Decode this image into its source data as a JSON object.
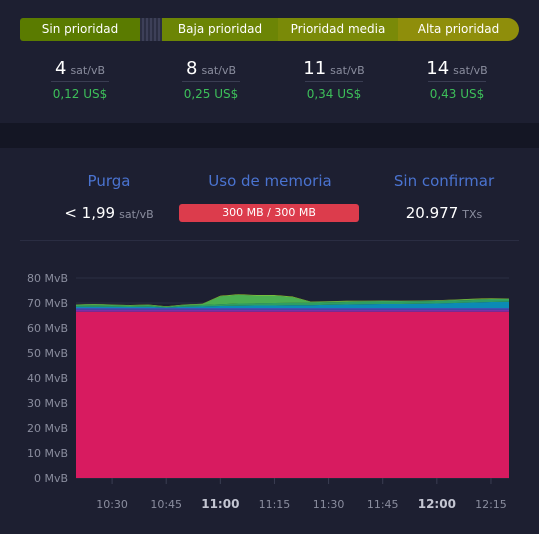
{
  "priority_tabs": [
    {
      "label": "Sin prioridad"
    },
    {
      "label": "Baja prioridad"
    },
    {
      "label": "Prioridad media"
    },
    {
      "label": "Alta prioridad"
    }
  ],
  "fees": [
    {
      "value": "4",
      "unit": "sat/vB",
      "usd": "0,12 US$"
    },
    {
      "value": "8",
      "unit": "sat/vB",
      "usd": "0,25 US$"
    },
    {
      "value": "11",
      "unit": "sat/vB",
      "usd": "0,34 US$"
    },
    {
      "value": "14",
      "unit": "sat/vB",
      "usd": "0,43 US$"
    }
  ],
  "stats": {
    "purge_title": "Purga",
    "purge_value": "< 1,99",
    "purge_unit": "sat/vB",
    "memory_title": "Uso de memoria",
    "memory_value": "300 MB / 300 MB",
    "memory_fraction": 1.0,
    "unconfirmed_title": "Sin confirmar",
    "unconfirmed_value": "20.977",
    "unconfirmed_unit": "TXs"
  },
  "colors": {
    "accent_blue": "#4a73d0",
    "fee_green": "#3dbf5a",
    "memory_red": "#dc3c4c",
    "area_pink": "#d81b60"
  },
  "chart_data": {
    "type": "area",
    "title": "",
    "xlabel": "",
    "ylabel": "",
    "yunit": "MvB",
    "ylim": [
      0,
      80
    ],
    "yticks": [
      "0 MvB",
      "10 MvB",
      "20 MvB",
      "30 MvB",
      "40 MvB",
      "50 MvB",
      "60 MvB",
      "70 MvB",
      "80 MvB"
    ],
    "xticks": [
      "10:30",
      "10:45",
      "11:00",
      "11:15",
      "11:30",
      "11:45",
      "12:00",
      "12:15"
    ],
    "xticks_bold": [
      "11:00",
      "12:00"
    ],
    "grid": true,
    "x": [
      "10:20",
      "10:25",
      "10:30",
      "10:35",
      "10:40",
      "10:45",
      "10:50",
      "10:55",
      "11:00",
      "11:05",
      "11:10",
      "11:15",
      "11:20",
      "11:25",
      "11:30",
      "11:35",
      "11:40",
      "11:45",
      "11:50",
      "11:55",
      "12:00",
      "12:05",
      "12:10",
      "12:15",
      "12:20"
    ],
    "series": [
      {
        "color": "#d81b60",
        "values": [
          66.5,
          66.5,
          66.5,
          66.5,
          66.5,
          66.5,
          66.5,
          66.5,
          66.5,
          66.5,
          66.5,
          66.5,
          66.5,
          66.5,
          66.5,
          66.5,
          66.5,
          66.5,
          66.5,
          66.5,
          66.5,
          66.5,
          66.5,
          66.5,
          66.5
        ]
      },
      {
        "color": "#7b2fa8",
        "values": [
          0.8,
          0.8,
          0.8,
          0.8,
          0.8,
          0.8,
          0.8,
          0.8,
          0.8,
          0.8,
          0.8,
          0.8,
          0.8,
          0.8,
          0.8,
          0.8,
          0.8,
          0.8,
          0.8,
          0.8,
          0.8,
          0.8,
          0.8,
          0.8,
          0.8
        ]
      },
      {
        "color": "#3f51b5",
        "values": [
          0.7,
          0.7,
          0.7,
          0.7,
          0.7,
          0.7,
          0.7,
          0.7,
          0.7,
          0.7,
          0.7,
          0.7,
          0.7,
          0.7,
          0.7,
          0.7,
          0.7,
          0.7,
          0.7,
          0.7,
          0.7,
          0.7,
          0.7,
          0.7,
          0.7
        ]
      },
      {
        "color": "#0b8bb5",
        "values": [
          0.5,
          0.5,
          0.5,
          0.4,
          0.5,
          0.2,
          0.5,
          0.6,
          0.8,
          0.9,
          1.0,
          1.0,
          1.1,
          1.1,
          1.3,
          1.4,
          1.5,
          1.6,
          1.6,
          1.7,
          1.8,
          2.0,
          2.2,
          2.4,
          2.5
        ]
      },
      {
        "color": "#2e9e63",
        "values": [
          0.5,
          0.6,
          0.5,
          0.4,
          0.5,
          0.2,
          0.5,
          0.6,
          0.7,
          0.9,
          0.9,
          1.0,
          1.0,
          1.0,
          1.0,
          1.0,
          1.0,
          1.0,
          1.0,
          1.0,
          1.0,
          1.0,
          1.0,
          1.0,
          0.9
        ]
      },
      {
        "color": "#4caf50",
        "values": [
          0.3,
          0.4,
          0.3,
          0.3,
          0.3,
          0.2,
          0.3,
          0.4,
          3.2,
          3.5,
          3.1,
          3.0,
          2.3,
          0.4,
          0.3,
          0.3,
          0.3,
          0.3,
          0.2,
          0.2,
          0.2,
          0.3,
          0.3,
          0.3,
          0.3
        ]
      },
      {
        "color": "#9ccc2b",
        "values": [
          0.1,
          0.1,
          0.1,
          0.1,
          0.1,
          0.1,
          0.1,
          0.1,
          0.2,
          0.2,
          0.2,
          0.2,
          0.2,
          0.1,
          0.1,
          0.2,
          0.1,
          0.1,
          0.1,
          0.1,
          0.1,
          0.1,
          0.2,
          0.2,
          0.1
        ]
      }
    ]
  }
}
